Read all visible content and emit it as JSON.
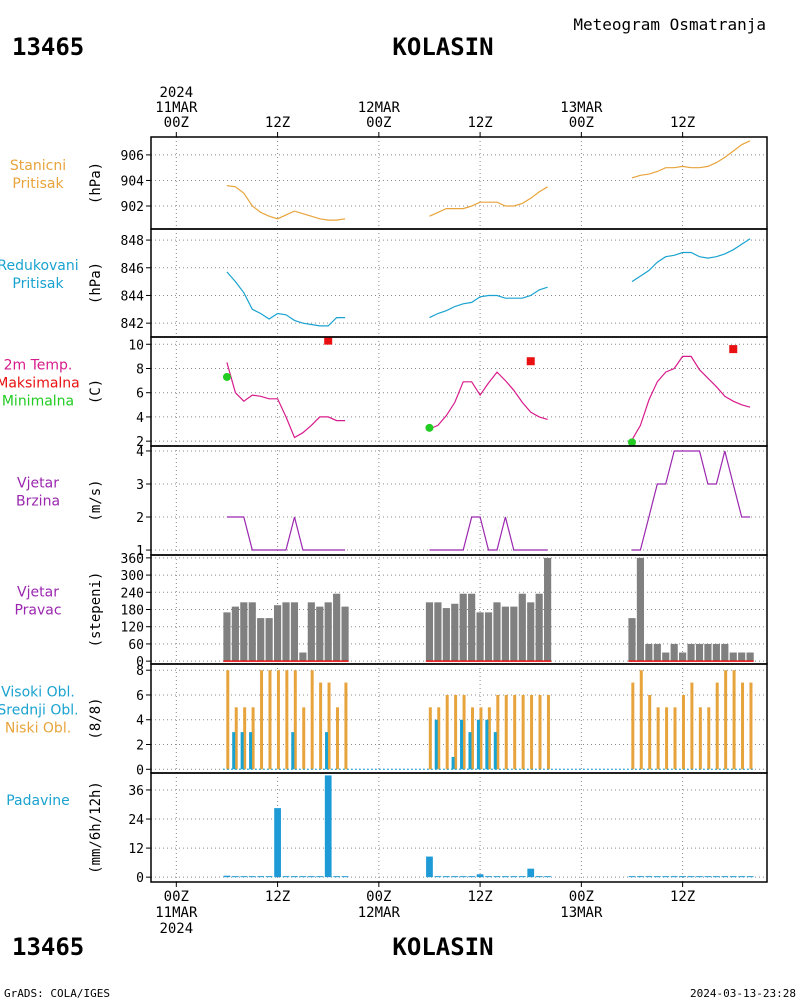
{
  "station": {
    "id": "13465",
    "name": "KOLASIN",
    "title": "Meteogram Osmatranja"
  },
  "footer": {
    "left": "GrADS: COLA/IGES",
    "right": "2024-03-13-23:28"
  },
  "colors": {
    "orange": "#e8a43c",
    "cyan": "#1aa3d0",
    "magenta": "#d81b8c",
    "red": "#e81010",
    "green": "#22cc22",
    "purple": "#9b27b0",
    "gray": "#808080",
    "blue": "#1e9ad6"
  },
  "time_axis": {
    "top_labels": [
      {
        "lines": [
          "2024",
          "11MAR",
          "00Z"
        ],
        "t": 0
      },
      {
        "lines": [
          "12Z"
        ],
        "t": 12
      },
      {
        "lines": [
          "12MAR",
          "00Z"
        ],
        "t": 24
      },
      {
        "lines": [
          "12Z"
        ],
        "t": 36
      },
      {
        "lines": [
          "13MAR",
          "00Z"
        ],
        "t": 48
      },
      {
        "lines": [
          "12Z"
        ],
        "t": 60
      }
    ],
    "bottom_labels": [
      {
        "lines": [
          "00Z",
          "11MAR",
          "2024"
        ],
        "t": 0
      },
      {
        "lines": [
          "12Z"
        ],
        "t": 12
      },
      {
        "lines": [
          "00Z",
          "12MAR"
        ],
        "t": 24
      },
      {
        "lines": [
          "12Z"
        ],
        "t": 36
      },
      {
        "lines": [
          "00Z",
          "13MAR"
        ],
        "t": 48
      },
      {
        "lines": [
          "12Z"
        ],
        "t": 60
      }
    ],
    "range_hours": [
      -3,
      70
    ]
  },
  "chart_data": [
    {
      "id": "stn_pressure",
      "type": "line",
      "labels": [
        {
          "text": "Stanicni",
          "color": "orange"
        },
        {
          "text": "Pritisak",
          "color": "orange"
        }
      ],
      "ylabel": "(hPa)",
      "ylim": [
        900.2,
        907.4
      ],
      "yticks": [
        902,
        904,
        906
      ],
      "segments": [
        {
          "color": "orange",
          "x": [
            6,
            7,
            8,
            9,
            10,
            11,
            12,
            13,
            14,
            15,
            16,
            17,
            18,
            19,
            20
          ],
          "y": [
            903.6,
            903.5,
            903.0,
            902.0,
            901.5,
            901.2,
            901.0,
            901.3,
            901.6,
            901.4,
            901.2,
            901.0,
            900.9,
            900.9,
            901.0
          ]
        },
        {
          "color": "orange",
          "x": [
            30,
            31,
            32,
            33,
            34,
            35,
            36,
            37,
            38,
            39,
            40,
            41,
            42,
            43,
            44
          ],
          "y": [
            901.2,
            901.5,
            901.8,
            901.8,
            901.8,
            902.0,
            902.3,
            902.3,
            902.3,
            902.0,
            902.0,
            902.2,
            902.6,
            903.1,
            903.5
          ]
        },
        {
          "color": "orange",
          "x": [
            54,
            55,
            56,
            57,
            58,
            59,
            60,
            61,
            62,
            63,
            64,
            65,
            66,
            67,
            68
          ],
          "y": [
            904.2,
            904.4,
            904.5,
            904.7,
            905.0,
            905.0,
            905.1,
            905.0,
            905.0,
            905.1,
            905.4,
            905.8,
            906.3,
            906.8,
            907.1
          ]
        }
      ]
    },
    {
      "id": "red_pressure",
      "type": "line",
      "labels": [
        {
          "text": "Redukovani",
          "color": "cyan"
        },
        {
          "text": "Pritisak",
          "color": "cyan"
        }
      ],
      "ylabel": "(hPa)",
      "ylim": [
        841.0,
        848.8
      ],
      "yticks": [
        842,
        844,
        846,
        848
      ],
      "segments": [
        {
          "color": "cyan",
          "x": [
            6,
            7,
            8,
            9,
            10,
            11,
            12,
            13,
            14,
            15,
            16,
            17,
            18,
            19,
            20
          ],
          "y": [
            845.7,
            845.0,
            844.2,
            843.0,
            842.7,
            842.3,
            842.7,
            842.6,
            842.2,
            842.0,
            841.9,
            841.8,
            841.8,
            842.4,
            842.4
          ]
        },
        {
          "color": "cyan",
          "x": [
            30,
            31,
            32,
            33,
            34,
            35,
            36,
            37,
            38,
            39,
            40,
            41,
            42,
            43,
            44
          ],
          "y": [
            842.4,
            842.7,
            842.9,
            843.2,
            843.4,
            843.5,
            843.9,
            844.0,
            844.0,
            843.8,
            843.8,
            843.8,
            844.0,
            844.4,
            844.6
          ]
        },
        {
          "color": "cyan",
          "x": [
            54,
            55,
            56,
            57,
            58,
            59,
            60,
            61,
            62,
            63,
            64,
            65,
            66,
            67,
            68
          ],
          "y": [
            845.0,
            845.4,
            845.8,
            846.4,
            846.8,
            846.9,
            847.1,
            847.1,
            846.8,
            846.7,
            846.8,
            847.0,
            847.3,
            847.7,
            848.1
          ]
        }
      ]
    },
    {
      "id": "temperature",
      "type": "line",
      "labels": [
        {
          "text": "2m Temp.",
          "color": "magenta"
        },
        {
          "text": "Maksimalna",
          "color": "red"
        },
        {
          "text": "Minimalna",
          "color": "green"
        }
      ],
      "ylabel": "(C)",
      "ylim": [
        1.6,
        10.6
      ],
      "yticks": [
        2,
        4,
        6,
        8,
        10
      ],
      "segments": [
        {
          "color": "magenta",
          "x": [
            6,
            7,
            8,
            9,
            10,
            11,
            12,
            13,
            14,
            15,
            16,
            17,
            18,
            19,
            20
          ],
          "y": [
            8.5,
            6.0,
            5.3,
            5.8,
            5.7,
            5.5,
            5.5,
            4.0,
            2.3,
            2.7,
            3.3,
            4.0,
            4.0,
            3.7,
            3.7
          ]
        },
        {
          "color": "magenta",
          "x": [
            30,
            31,
            32,
            33,
            34,
            35,
            36,
            37,
            38,
            39,
            40,
            41,
            42,
            43,
            44
          ],
          "y": [
            3.0,
            3.3,
            4.1,
            5.2,
            6.9,
            6.9,
            5.8,
            6.8,
            7.7,
            7.0,
            6.2,
            5.2,
            4.4,
            4.0,
            3.8
          ]
        },
        {
          "color": "magenta",
          "x": [
            54,
            55,
            56,
            57,
            58,
            59,
            60,
            61,
            62,
            63,
            64,
            65,
            66,
            67,
            68
          ],
          "y": [
            2.1,
            3.3,
            5.4,
            6.9,
            7.7,
            8.0,
            9.0,
            9.0,
            7.9,
            7.2,
            6.5,
            5.7,
            5.3,
            5.0,
            4.8
          ]
        }
      ],
      "max_points": {
        "color": "red",
        "x": [
          18,
          42,
          66
        ],
        "y": [
          10.3,
          8.6,
          9.6
        ]
      },
      "min_points": {
        "color": "green",
        "x": [
          6,
          30,
          54
        ],
        "y": [
          7.3,
          3.1,
          1.9
        ]
      }
    },
    {
      "id": "wind_speed",
      "type": "line",
      "labels": [
        {
          "text": "Vjetar",
          "color": "purple"
        },
        {
          "text": "Brzina",
          "color": "purple"
        }
      ],
      "ylabel": "(m/s)",
      "ylim": [
        0.85,
        4.15
      ],
      "yticks": [
        1,
        2,
        3,
        4
      ],
      "segments": [
        {
          "color": "purple",
          "x": [
            6,
            7,
            8,
            9,
            10,
            11,
            12,
            13,
            14,
            15,
            16,
            17,
            18,
            19,
            20
          ],
          "y": [
            2,
            2,
            2,
            1,
            1,
            1,
            1,
            1,
            2,
            1,
            1,
            1,
            1,
            1,
            1
          ]
        },
        {
          "color": "purple",
          "x": [
            30,
            31,
            32,
            33,
            34,
            35,
            36,
            37,
            38,
            39,
            40,
            41,
            42,
            43,
            44
          ],
          "y": [
            1,
            1,
            1,
            1,
            1,
            2,
            2,
            1,
            1,
            2,
            1,
            1,
            1,
            1,
            1
          ]
        },
        {
          "color": "purple",
          "x": [
            54,
            55,
            56,
            57,
            58,
            59,
            60,
            61,
            62,
            63,
            64,
            65,
            66,
            67,
            68
          ],
          "y": [
            1,
            1,
            2,
            3,
            3,
            4,
            4,
            4,
            4,
            3,
            3,
            4,
            3,
            2,
            2
          ]
        }
      ]
    },
    {
      "id": "wind_dir",
      "type": "bar",
      "labels": [
        {
          "text": "Vjetar",
          "color": "purple"
        },
        {
          "text": "Pravac",
          "color": "purple"
        }
      ],
      "ylabel": "(stepeni)",
      "ylim": [
        -10,
        370
      ],
      "yticks": [
        0,
        60,
        120,
        180,
        240,
        300,
        360
      ],
      "bar_color": "gray",
      "bar_width_hours": 0.85,
      "baseline_color": "red",
      "x": [
        6,
        7,
        8,
        9,
        10,
        11,
        12,
        13,
        14,
        15,
        16,
        17,
        18,
        19,
        20,
        30,
        31,
        32,
        33,
        34,
        35,
        36,
        37,
        38,
        39,
        40,
        41,
        42,
        43,
        44,
        54,
        55,
        56,
        57,
        58,
        59,
        60,
        61,
        62,
        63,
        64,
        65,
        66,
        67,
        68
      ],
      "y": [
        170,
        190,
        205,
        205,
        150,
        150,
        195,
        205,
        205,
        30,
        205,
        190,
        205,
        235,
        190,
        205,
        205,
        185,
        200,
        235,
        235,
        170,
        170,
        205,
        190,
        190,
        235,
        205,
        235,
        360,
        150,
        360,
        60,
        60,
        30,
        60,
        30,
        60,
        60,
        60,
        60,
        60,
        30,
        30,
        30
      ]
    },
    {
      "id": "clouds",
      "type": "bar",
      "labels": [
        {
          "text": "Visoki Obl.",
          "color": "cyan"
        },
        {
          "text": "Srednji Obl.",
          "color": "cyan"
        },
        {
          "text": "Niski Obl.",
          "color": "orange"
        }
      ],
      "ylabel": "(8/8)",
      "ylim": [
        -0.3,
        8.5
      ],
      "yticks": [
        0,
        2,
        4,
        6,
        8
      ],
      "series": [
        {
          "name": "Niski Obl.",
          "color": "orange",
          "offset": 0.1,
          "x": [
            6,
            7,
            8,
            9,
            10,
            11,
            12,
            13,
            14,
            15,
            16,
            17,
            18,
            19,
            20,
            30,
            31,
            32,
            33,
            34,
            35,
            36,
            37,
            38,
            39,
            40,
            41,
            42,
            43,
            44,
            54,
            55,
            56,
            57,
            58,
            59,
            60,
            61,
            62,
            63,
            64,
            65,
            66,
            67,
            68
          ],
          "y": [
            8,
            5,
            5,
            5,
            8,
            8,
            8,
            8,
            8,
            5,
            8,
            7,
            7,
            5,
            7,
            5,
            5,
            6,
            6,
            6,
            5,
            5,
            5,
            6,
            6,
            6,
            6,
            6,
            6,
            6,
            7,
            8,
            6,
            5,
            5,
            5,
            6,
            7,
            5,
            5,
            7,
            8,
            8,
            7,
            7
          ]
        },
        {
          "name": "Srednji Obl.",
          "color": "cyan",
          "offset": -0.2,
          "x": [
            7,
            8,
            9,
            14,
            18,
            31,
            33,
            34,
            35,
            36,
            37,
            38
          ],
          "y": [
            3,
            3,
            3,
            3,
            3,
            4,
            1,
            4,
            3,
            4,
            4,
            3
          ]
        }
      ]
    },
    {
      "id": "precip",
      "type": "bar",
      "labels": [
        {
          "text": "Padavine",
          "color": "cyan"
        }
      ],
      "ylabel": "(mm/6h/12h)",
      "ylim": [
        -2,
        43
      ],
      "yticks": [
        0,
        12,
        24,
        36
      ],
      "bar_color": "blue",
      "bar_width_hours": 0.8,
      "x": [
        6,
        7,
        8,
        9,
        10,
        11,
        12,
        13,
        14,
        15,
        16,
        17,
        18,
        19,
        20,
        30,
        31,
        32,
        33,
        34,
        35,
        36,
        37,
        38,
        39,
        40,
        41,
        42,
        43,
        44,
        54,
        55,
        56,
        57,
        58,
        59,
        60,
        61,
        62,
        63,
        64,
        65,
        66,
        67,
        68
      ],
      "y": [
        0.6,
        0.3,
        0.3,
        0.3,
        0.3,
        0.3,
        28.5,
        0.3,
        0.3,
        0.3,
        0.3,
        0.3,
        42,
        0.3,
        0.3,
        8.5,
        0.3,
        0.3,
        0.3,
        0.3,
        0.3,
        1.2,
        0.3,
        0.3,
        0.3,
        0.3,
        0.3,
        3.5,
        0.3,
        0.3,
        0.3,
        0.3,
        0.3,
        0.3,
        0.3,
        0.3,
        0.3,
        0.3,
        0.3,
        0.3,
        0.3,
        0.3,
        0.3,
        0.3,
        0.3
      ]
    }
  ]
}
